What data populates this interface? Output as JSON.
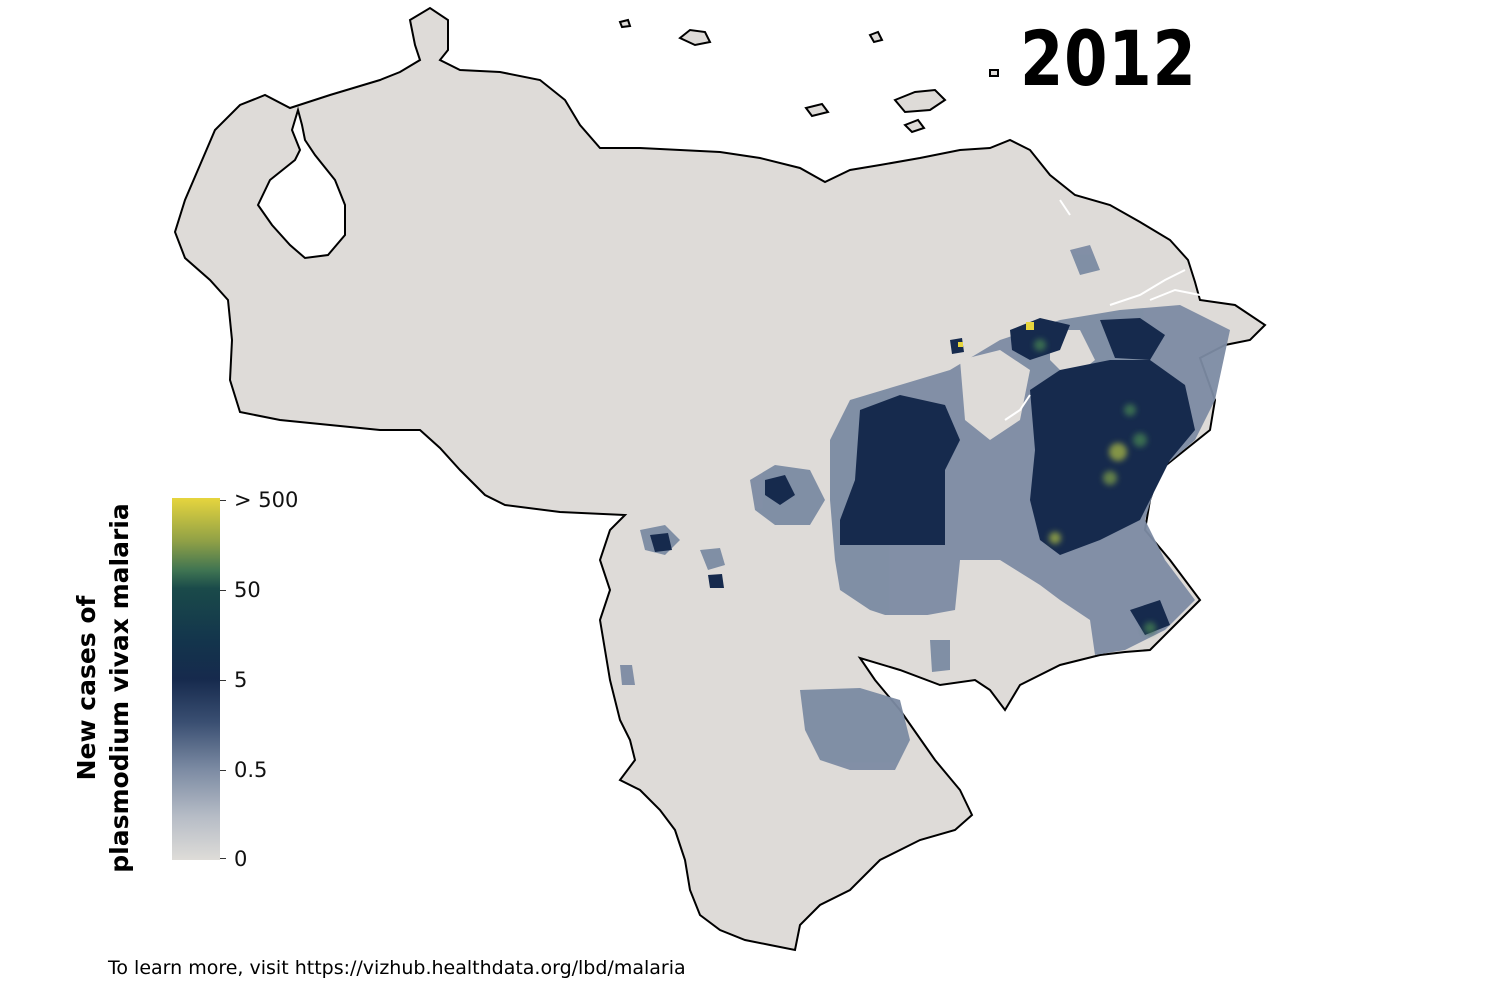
{
  "map": {
    "year": "2012",
    "colors": {
      "land": "#dedbd8",
      "border": "#000000",
      "low": "#7c8ba3",
      "medium": "#162a4d",
      "high": "#e6d53e"
    }
  },
  "legend": {
    "title_line1": "New cases of",
    "title_line2": "plasmodium vivax malaria",
    "values": [
      "> 500",
      "50",
      "5",
      "0.5",
      "0"
    ]
  },
  "footer": {
    "note": "To learn more, visit https://vizhub.healthdata.org/lbd/malaria"
  }
}
